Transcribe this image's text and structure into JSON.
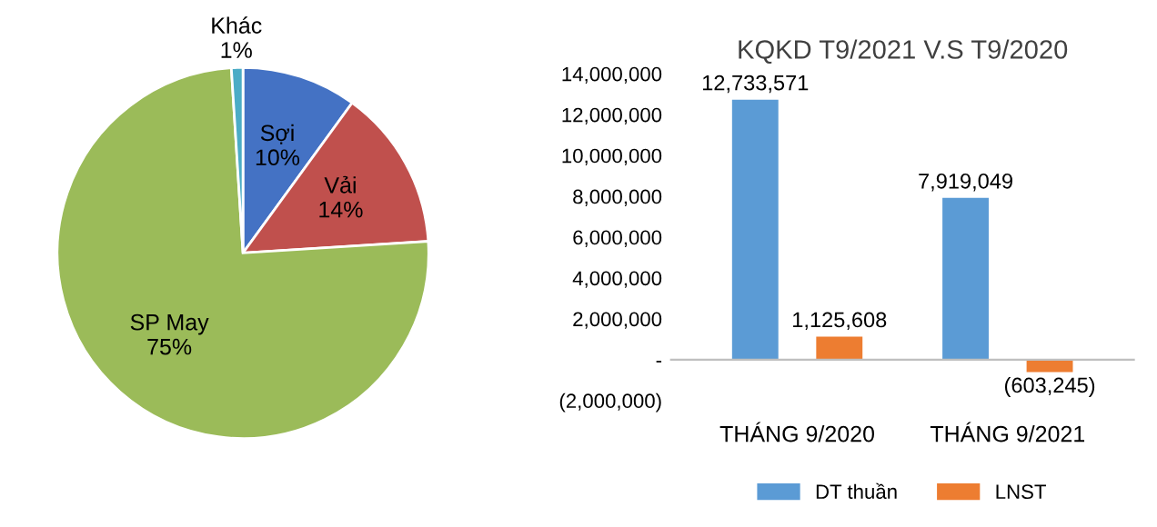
{
  "chart_data": [
    {
      "type": "pie",
      "categories": [
        "Sợi",
        "Vải",
        "SP May",
        "Khác"
      ],
      "values": [
        10,
        14,
        75,
        1
      ],
      "colors": [
        "#4472c4",
        "#c0504d",
        "#9bbb59",
        "#4bacc6"
      ],
      "value_labels": [
        "10%",
        "14%",
        "75%",
        "1%"
      ]
    },
    {
      "type": "bar",
      "title": "KQKD T9/2021 V.S T9/2020",
      "categories": [
        "THÁNG 9/2020",
        "THÁNG 9/2021"
      ],
      "series": [
        {
          "name": "DT thuần",
          "color": "#5b9bd5",
          "values": [
            12733571,
            7919049
          ],
          "value_labels": [
            "12,733,571",
            "7,919,049"
          ]
        },
        {
          "name": "LNST",
          "color": "#ed7d31",
          "values": [
            1125608,
            -603245
          ],
          "value_labels": [
            "1,125,608",
            "(603,245)"
          ]
        }
      ],
      "ylim": [
        -2000000,
        14000000
      ],
      "yticks": [
        {
          "value": -2000000,
          "label": "(2,000,000)"
        },
        {
          "value": 0,
          "label": "-"
        },
        {
          "value": 2000000,
          "label": "2,000,000"
        },
        {
          "value": 4000000,
          "label": "4,000,000"
        },
        {
          "value": 6000000,
          "label": "6,000,000"
        },
        {
          "value": 8000000,
          "label": "8,000,000"
        },
        {
          "value": 10000000,
          "label": "10,000,000"
        },
        {
          "value": 12000000,
          "label": "12,000,000"
        },
        {
          "value": 14000000,
          "label": "14,000,000"
        }
      ],
      "legend": "bottom"
    }
  ]
}
